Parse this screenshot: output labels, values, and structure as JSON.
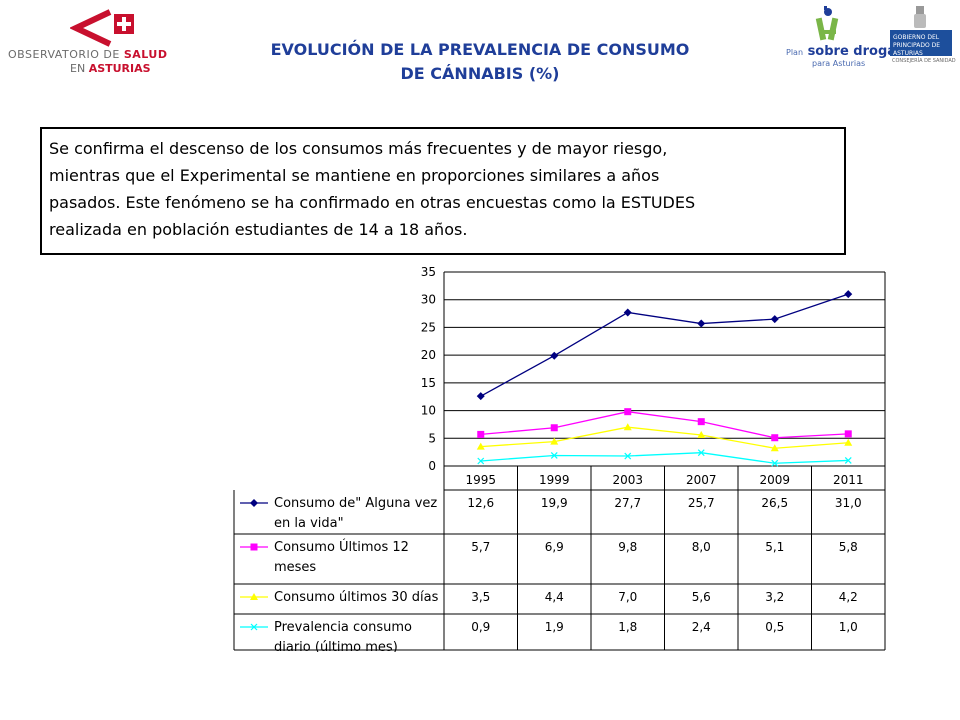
{
  "header": {
    "title_line1": "EVOLUCIÓN DE LA PREVALENCIA DE CONSUMO",
    "title_line2": "DE CÁNNABIS (%)",
    "logo_left_line1_a": "OBSERVATORIO DE ",
    "logo_left_line1_b": "SALUD",
    "logo_left_line2_a": "EN ",
    "logo_left_line2_b": "ASTURIAS",
    "logo_plan_prefix": "Plan",
    "logo_plan_main": "sobre drogas",
    "logo_plan_sub": "para Asturias",
    "logo_gob_line1": "GOBIERNO DEL",
    "logo_gob_line2": "PRINCIPADO DE ASTURIAS",
    "logo_gob_sub": "CONSEJERÍA DE SANIDAD",
    "colors": {
      "title": "#1f3e99",
      "logo_red": "#c8102e",
      "gob_blue": "#1d4f9c"
    }
  },
  "summary": {
    "line1": "Se confirma el descenso de los consumos más frecuentes y de mayor riesgo,",
    "line2": "mientras que el Experimental se mantiene en proporciones similares a años",
    "line3": "pasados. Este fenómeno se ha confirmado en otras encuestas como la ESTUDES",
    "line4": "realizada en población estudiantes de 14 a 18 años."
  },
  "chart_data": {
    "type": "line",
    "title": "",
    "xlabel": "",
    "ylabel": "",
    "ylim": [
      0,
      35
    ],
    "yticks": [
      0,
      5,
      10,
      15,
      20,
      25,
      30,
      35
    ],
    "grid": "horizontal",
    "legend": "data-table-below",
    "categories": [
      "1995",
      "1999",
      "2003",
      "2007",
      "2009",
      "2011"
    ],
    "series": [
      {
        "name_line1": "Consumo de\" Alguna vez",
        "name_line2": "en la vida\"",
        "color": "#000080",
        "marker": "diamond",
        "values": [
          12.6,
          19.9,
          27.7,
          25.7,
          26.5,
          31.0
        ],
        "labels": [
          "12,6",
          "19,9",
          "27,7",
          "25,7",
          "26,5",
          "31,0"
        ]
      },
      {
        "name_line1": "Consumo Últimos 12",
        "name_line2": "meses",
        "color": "#ff00ff",
        "marker": "square",
        "values": [
          5.7,
          6.9,
          9.8,
          8.0,
          5.1,
          5.8
        ],
        "labels": [
          "5,7",
          "6,9",
          "9,8",
          "8,0",
          "5,1",
          "5,8"
        ]
      },
      {
        "name_line1": "Consumo últimos 30 días",
        "name_line2": "",
        "color": "#ffff00",
        "marker": "triangle",
        "values": [
          3.5,
          4.4,
          7.0,
          5.6,
          3.2,
          4.2
        ],
        "labels": [
          "3,5",
          "4,4",
          "7,0",
          "5,6",
          "3,2",
          "4,2"
        ]
      },
      {
        "name_line1": "Prevalencia consumo",
        "name_line2": "diario (último mes)",
        "color": "#00ffff",
        "marker": "x",
        "values": [
          0.9,
          1.9,
          1.8,
          2.4,
          0.5,
          1.0
        ],
        "labels": [
          "0,9",
          "1,9",
          "1,8",
          "2,4",
          "0,5",
          "1,0"
        ]
      }
    ]
  }
}
